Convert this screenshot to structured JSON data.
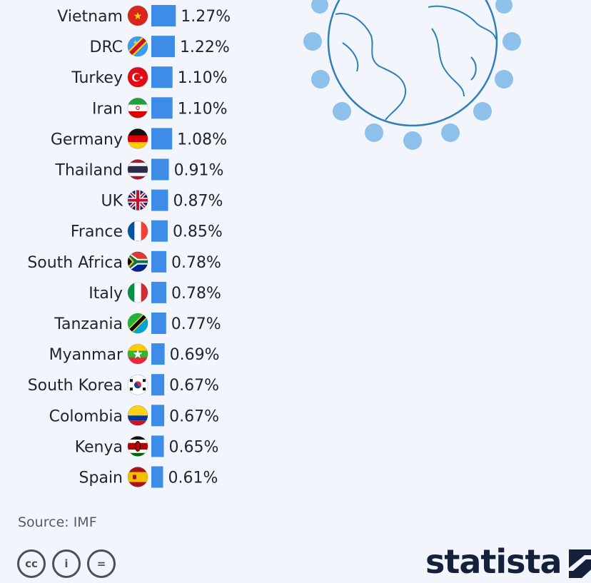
{
  "chart_data": {
    "type": "bar",
    "orientation": "horizontal",
    "categories": [
      "Vietnam",
      "DRC",
      "Turkey",
      "Iran",
      "Germany",
      "Thailand",
      "UK",
      "France",
      "South Africa",
      "Italy",
      "Tanzania",
      "Myanmar",
      "South Korea",
      "Colombia",
      "Kenya",
      "Spain"
    ],
    "values": [
      1.27,
      1.22,
      1.1,
      1.1,
      1.08,
      0.91,
      0.87,
      0.85,
      0.78,
      0.78,
      0.77,
      0.69,
      0.67,
      0.67,
      0.65,
      0.61
    ],
    "value_labels": [
      "1.27%",
      "1.22%",
      "1.10%",
      "1.10%",
      "1.08%",
      "0.91%",
      "0.87%",
      "0.85%",
      "0.78%",
      "0.78%",
      "0.77%",
      "0.69%",
      "0.67%",
      "0.67%",
      "0.65%",
      "0.61%"
    ],
    "flag_icons": [
      "vietnam-flag-icon",
      "drc-flag-icon",
      "turkey-flag-icon",
      "iran-flag-icon",
      "germany-flag-icon",
      "thailand-flag-icon",
      "uk-flag-icon",
      "france-flag-icon",
      "south-africa-flag-icon",
      "italy-flag-icon",
      "tanzania-flag-icon",
      "myanmar-flag-icon",
      "south-korea-flag-icon",
      "colombia-flag-icon",
      "kenya-flag-icon",
      "spain-flag-icon"
    ],
    "bar_color": "#3c8ce8"
  },
  "footer": {
    "source": "Source: IMF",
    "license_icons": [
      "cc-icon",
      "attribution-icon",
      "no-derivatives-icon"
    ],
    "license_glyphs": [
      "cc",
      "i",
      "="
    ],
    "brand": "statista"
  },
  "colors": {
    "background": "#f2f5fb",
    "globe": "#2f7fb8",
    "dots": "#8ec0ec",
    "brand": "#14213a"
  }
}
